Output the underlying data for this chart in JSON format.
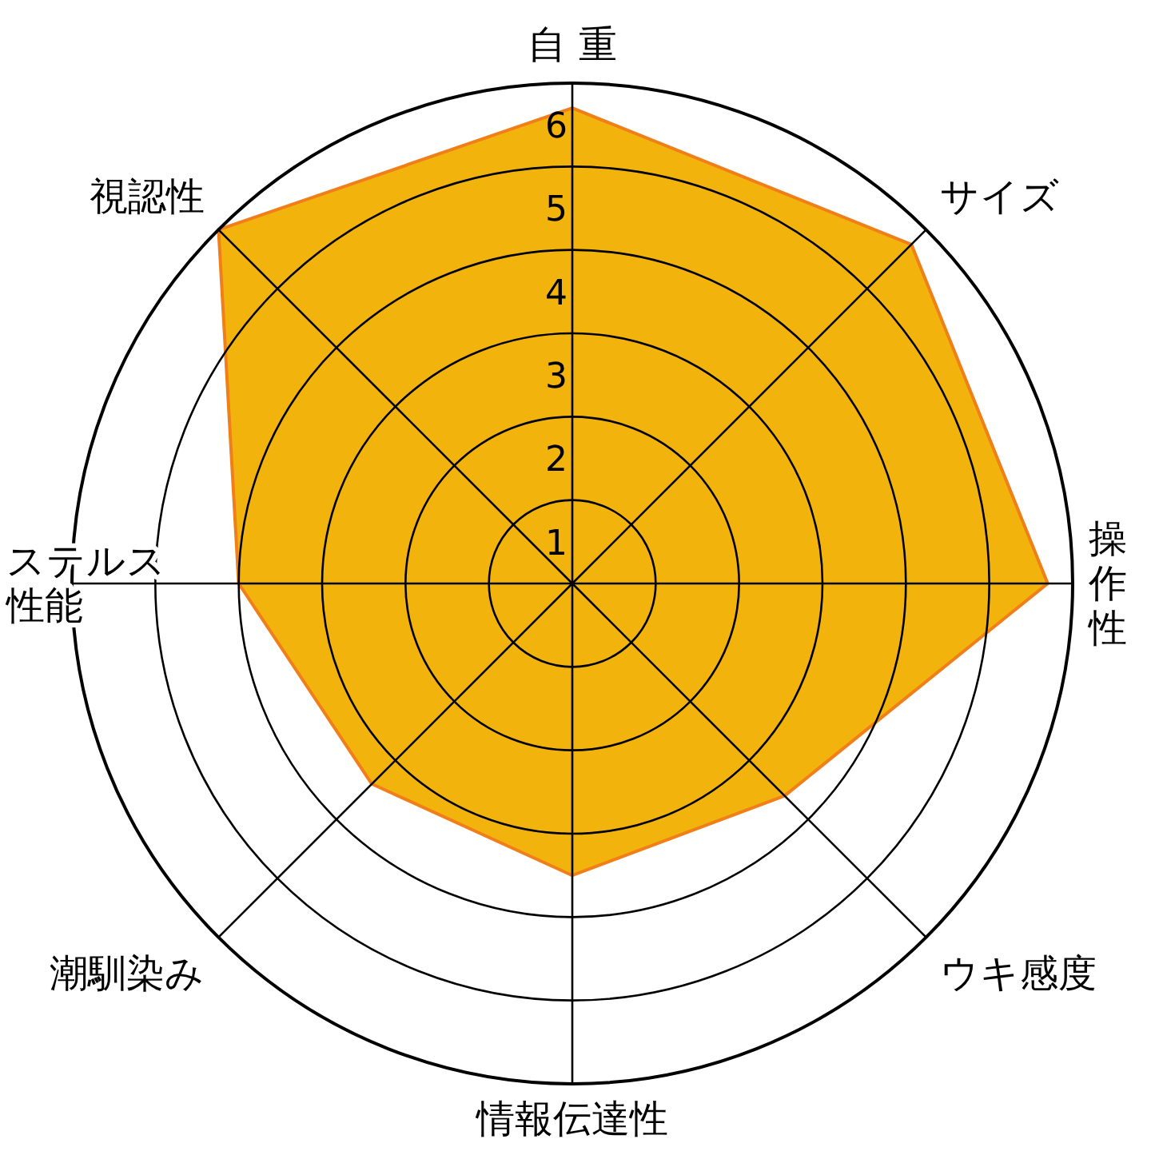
{
  "chart_data": {
    "type": "radar",
    "categories": [
      "自 重",
      "サイズ",
      "操作性",
      "ウキ感度",
      "情報伝達性",
      "潮馴染み",
      "ステルス性能",
      "視認性"
    ],
    "series": [
      {
        "color": "#f2b40c",
        "values": [
          5.7,
          5.75,
          5.7,
          3.6,
          3.5,
          3.4,
          4.0,
          6.0
        ]
      }
    ],
    "ylim": [
      0,
      6
    ],
    "yticks": [
      1,
      2,
      3,
      4,
      5,
      6
    ],
    "grid": true
  }
}
